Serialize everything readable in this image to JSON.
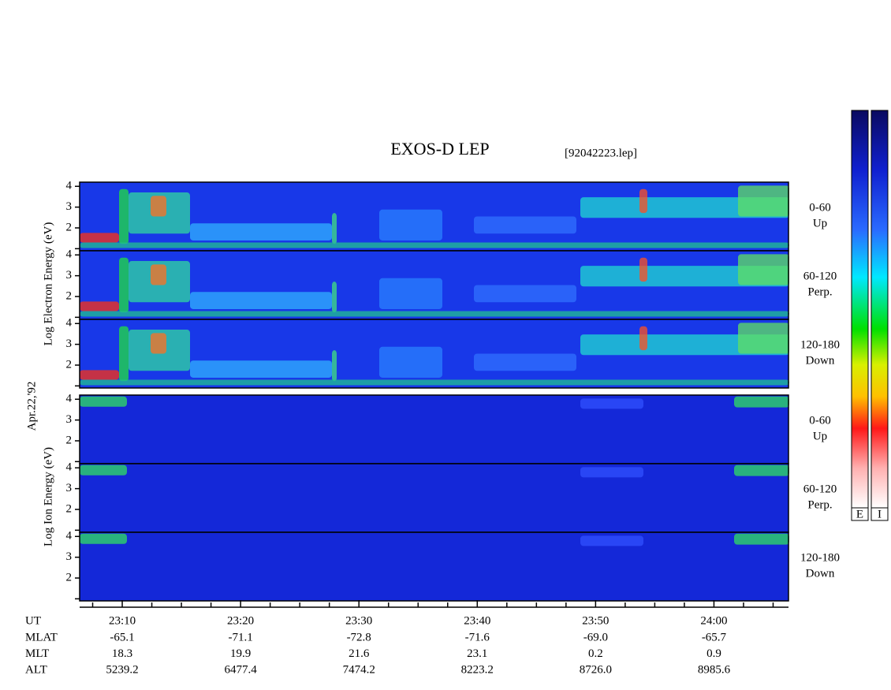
{
  "chart_data": {
    "type": "spectrogram",
    "title": "EXOS-D LEP",
    "subtitle": "[92042223.lep]",
    "date_label": "Apr.22,'92",
    "xlim": [
      6.4,
      66.3
    ],
    "xticks": [
      {
        "value": 10,
        "label": "23:10"
      },
      {
        "value": 20,
        "label": "23:20"
      },
      {
        "value": 30,
        "label": "23:30"
      },
      {
        "value": 40,
        "label": "23:40"
      },
      {
        "value": 50,
        "label": "23:50"
      },
      {
        "value": 60,
        "label": "24:00"
      }
    ],
    "xminor_ticks": [
      7.5,
      12.5,
      15,
      17.5,
      22.5,
      25,
      27.5,
      32.5,
      35,
      37.5,
      42.5,
      45,
      47.5,
      52.5,
      55,
      57.5,
      62.5,
      65
    ],
    "ylim": [
      0.9,
      4.2
    ],
    "yticks": [
      2,
      3,
      4
    ],
    "yminor_ticks": [
      1
    ],
    "groups": [
      {
        "ylabel": "Log Electron Energy (eV)",
        "panels": [
          {
            "angle": "0-60",
            "direction": "Up"
          },
          {
            "angle": "60-120",
            "direction": "Perp."
          },
          {
            "angle": "120-180",
            "direction": "Down"
          }
        ]
      },
      {
        "ylabel": "Log Ion Energy (eV)",
        "panels": [
          {
            "angle": "0-60",
            "direction": "Up"
          },
          {
            "angle": "60-120",
            "direction": "Perp."
          },
          {
            "angle": "120-180",
            "direction": "Down"
          }
        ]
      }
    ],
    "colorbars": [
      "E",
      "I"
    ],
    "x_row_label": "UT",
    "ephemeris": [
      {
        "label": "MLAT",
        "values": [
          "-65.1",
          "-71.1",
          "-72.8",
          "-71.6",
          "-69.0",
          "-65.7"
        ]
      },
      {
        "label": "MLT",
        "values": [
          "18.3",
          "19.9",
          "21.6",
          "23.1",
          "0.2",
          "0.9"
        ]
      },
      {
        "label": "ALT",
        "values": [
          "5239.2",
          "6477.4",
          "7474.2",
          "8223.2",
          "8726.0",
          "8985.6"
        ]
      }
    ]
  }
}
